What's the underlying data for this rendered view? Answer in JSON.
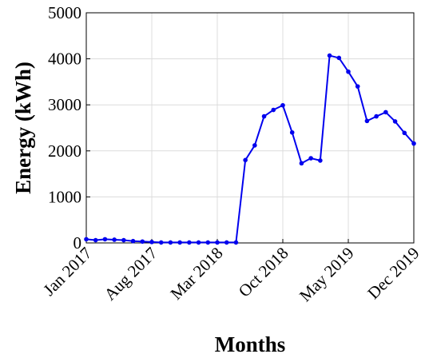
{
  "chart_data": {
    "type": "line",
    "xlabel": "Months",
    "ylabel": "Energy (kWh)",
    "categories": [
      "Jan 2017",
      null,
      null,
      null,
      null,
      null,
      null,
      "Aug 2017",
      null,
      null,
      null,
      null,
      null,
      null,
      "Mar 2018",
      null,
      null,
      null,
      null,
      null,
      null,
      "Oct 2018",
      null,
      null,
      null,
      null,
      null,
      null,
      "May 2019",
      null,
      null,
      null,
      null,
      null,
      null,
      "Dec 2019"
    ],
    "series": [
      {
        "name": "Energy",
        "color": "#0000ee",
        "values": [
          80,
          60,
          80,
          70,
          60,
          40,
          30,
          20,
          10,
          10,
          10,
          10,
          10,
          10,
          10,
          10,
          10,
          1800,
          2120,
          2750,
          2890,
          2990,
          2400,
          1730,
          1840,
          1790,
          4070,
          4020,
          3720,
          3400,
          2650,
          2750,
          2840,
          2640,
          2390,
          2160
        ]
      }
    ],
    "ylim": [
      0,
      5000
    ],
    "yticks": [
      0,
      1000,
      2000,
      3000,
      4000,
      5000
    ],
    "grid": true
  }
}
